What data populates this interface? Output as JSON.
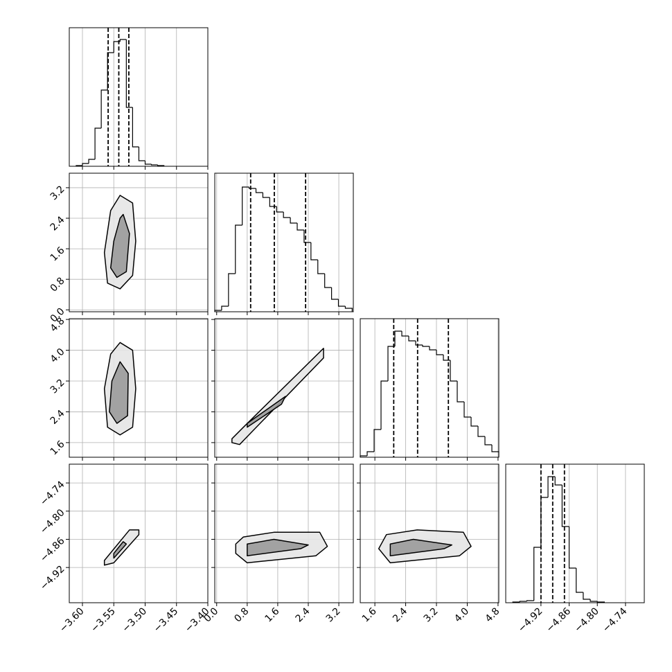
{
  "chart_data": {
    "type": "corner",
    "grid": true,
    "line_color": "#000000",
    "params": [
      {
        "lim": [
          -3.621,
          -3.4
        ],
        "ticks": [
          {
            "value": -3.6,
            "label": "−3.60"
          },
          {
            "value": -3.55,
            "label": "−3.55"
          },
          {
            "value": -3.5,
            "label": "−3.50"
          },
          {
            "value": -3.45,
            "label": "−3.45"
          },
          {
            "value": -3.4,
            "label": "−3.40"
          }
        ],
        "hist": {
          "bins": [
            -3.61,
            -3.6,
            -3.59,
            -3.58,
            -3.57,
            -3.56,
            -3.55,
            -3.54,
            -3.53,
            -3.52,
            -3.51,
            -3.5,
            -3.49,
            -3.48,
            -3.47
          ],
          "counts": [
            1,
            4,
            10,
            55,
            110,
            164,
            180,
            183,
            85,
            28,
            8,
            3,
            2,
            1
          ],
          "ylim": [
            0,
            200
          ]
        },
        "quantiles": [
          -3.559,
          -3.542,
          -3.526
        ]
      },
      {
        "lim": [
          -0.05,
          3.58
        ],
        "ticks": [
          {
            "value": 0,
            "label": "0.0"
          },
          0.8,
          1.6,
          2.4,
          3.2
        ],
        "hist": {
          "bins": [
            -0.05,
            0.13,
            0.31,
            0.49,
            0.67,
            0.85,
            1.03,
            1.21,
            1.39,
            1.57,
            1.75,
            1.93,
            2.11,
            2.29,
            2.47,
            2.65,
            2.83,
            3.01,
            3.19,
            3.37,
            3.55
          ],
          "counts": [
            2,
            8,
            55,
            125,
            180,
            178,
            172,
            165,
            152,
            144,
            136,
            128,
            118,
            100,
            75,
            55,
            35,
            18,
            8,
            5
          ],
          "ylim": [
            0,
            200
          ]
        },
        "quantiles": [
          0.89,
          1.51,
          2.33
        ]
      },
      {
        "lim": [
          1.22,
          4.82
        ],
        "ticks": [
          1.6,
          2.4,
          3.2,
          {
            "value": 4,
            "label": "4.0"
          },
          4.8
        ],
        "hist": {
          "bins": [
            1.22,
            1.4,
            1.58,
            1.76,
            1.94,
            2.12,
            2.3,
            2.48,
            2.66,
            2.84,
            3.02,
            3.2,
            3.38,
            3.56,
            3.74,
            3.92,
            4.1,
            4.28,
            4.46,
            4.64,
            4.82
          ],
          "counts": [
            2,
            8,
            40,
            110,
            160,
            182,
            175,
            168,
            162,
            160,
            155,
            148,
            140,
            110,
            80,
            58,
            45,
            30,
            18,
            8
          ],
          "ylim": [
            0,
            200
          ]
        },
        "quantiles": [
          2.09,
          2.71,
          3.51
        ]
      },
      {
        "lim": [
          -4.995,
          -4.7
        ],
        "ticks": [
          {
            "value": -4.92,
            "label": "−4.92"
          },
          {
            "value": -4.86,
            "label": "−4.86"
          },
          {
            "value": -4.8,
            "label": "−4.80"
          },
          {
            "value": -4.74,
            "label": "−4.74"
          }
        ],
        "hist": {
          "bins": [
            -4.98,
            -4.965,
            -4.95,
            -4.935,
            -4.92,
            -4.905,
            -4.89,
            -4.875,
            -4.86,
            -4.845,
            -4.83,
            -4.815,
            -4.8,
            -4.785
          ],
          "counts": [
            1,
            2,
            3,
            80,
            152,
            182,
            170,
            110,
            50,
            15,
            5,
            2,
            1
          ],
          "ylim": [
            0,
            200
          ]
        },
        "quantiles": [
          -4.92,
          -4.895,
          -4.87
        ]
      }
    ],
    "pairs": [
      {
        "contours": [
          {
            "x": [
              -3.54,
              -3.52,
              -3.515,
              -3.52,
              -3.54,
              -3.56,
              -3.565,
              -3.555
            ],
            "y": [
              3.0,
              2.8,
              1.8,
              0.9,
              0.55,
              0.7,
              1.5,
              2.6
            ]
          },
          {
            "x": [
              -3.535,
              -3.525,
              -3.53,
              -3.545,
              -3.555,
              -3.55,
              -3.54
            ],
            "y": [
              2.5,
              2.0,
              1.0,
              0.85,
              1.1,
              1.8,
              2.4
            ]
          }
        ]
      },
      {
        "contours": [
          {
            "x": [
              -3.54,
              -3.52,
              -3.515,
              -3.52,
              -3.54,
              -3.56,
              -3.565,
              -3.555
            ],
            "y": [
              4.2,
              4.0,
              3.0,
              2.0,
              1.8,
              2.0,
              3.0,
              3.9
            ]
          },
          {
            "x": [
              -3.54,
              -3.527,
              -3.528,
              -3.545,
              -3.557,
              -3.553
            ],
            "y": [
              3.7,
              3.4,
              2.3,
              2.1,
              2.4,
              3.2
            ]
          }
        ]
      },
      {
        "contours": [
          {
            "x": [
              0.4,
              0.7,
              2.8,
              2.8,
              0.6,
              0.4
            ],
            "y": [
              1.7,
              2.0,
              4.05,
              3.8,
              1.55,
              1.6
            ]
          },
          {
            "x": [
              0.8,
              1.8,
              1.7,
              0.8
            ],
            "y": [
              2.1,
              2.8,
              2.6,
              2.0
            ]
          }
        ]
      },
      {
        "contours": [
          {
            "x": [
              -3.565,
              -3.55,
              -3.51,
              -3.51,
              -3.525,
              -3.565
            ],
            "y": [
              -4.915,
              -4.91,
              -4.85,
              -4.84,
              -4.84,
              -4.905
            ]
          },
          {
            "x": [
              -3.55,
              -3.53,
              -3.535,
              -3.55
            ],
            "y": [
              -4.9,
              -4.87,
              -4.865,
              -4.89
            ]
          }
        ]
      },
      {
        "contours": [
          {
            "x": [
              0.5,
              0.8,
              2.6,
              2.9,
              2.7,
              1.5,
              0.7,
              0.5
            ],
            "y": [
              -4.89,
              -4.91,
              -4.895,
              -4.875,
              -4.845,
              -4.845,
              -4.855,
              -4.87
            ]
          },
          {
            "x": [
              0.8,
              2.2,
              2.4,
              1.5,
              0.8
            ],
            "y": [
              -4.895,
              -4.88,
              -4.872,
              -4.86,
              -4.87
            ]
          }
        ]
      },
      {
        "contours": [
          {
            "x": [
              1.7,
              2.0,
              3.8,
              4.1,
              3.9,
              2.7,
              1.9
            ],
            "y": [
              -4.88,
              -4.91,
              -4.895,
              -4.875,
              -4.845,
              -4.84,
              -4.85
            ]
          },
          {
            "x": [
              2.0,
              3.4,
              3.6,
              2.6,
              2.0
            ],
            "y": [
              -4.895,
              -4.88,
              -4.872,
              -4.86,
              -4.87
            ]
          }
        ]
      }
    ]
  }
}
